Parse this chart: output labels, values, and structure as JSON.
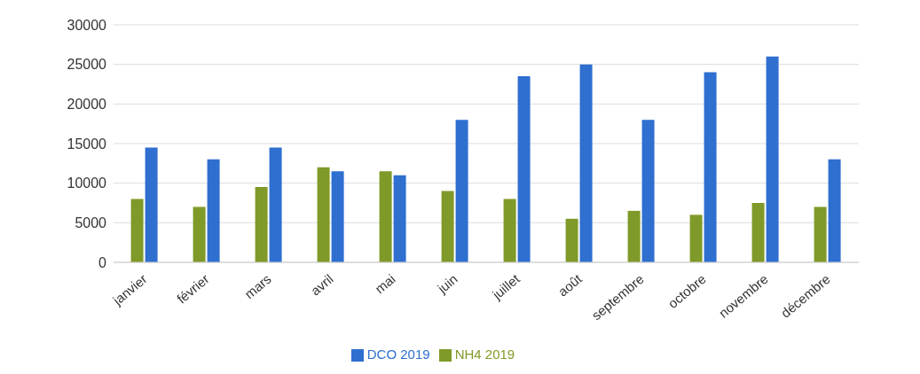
{
  "chart_data": {
    "type": "bar",
    "categories": [
      "janvier",
      "février",
      "mars",
      "avril",
      "mai",
      "juin",
      "juillet",
      "août",
      "septembre",
      "octobre",
      "novembre",
      "décembre"
    ],
    "series": [
      {
        "name": "NH4 2019",
        "color": "#7f9a28",
        "values": [
          8000,
          7000,
          9500,
          12000,
          11500,
          9000,
          8000,
          5500,
          6500,
          6000,
          7500,
          7000
        ]
      },
      {
        "name": "DCO 2019",
        "color": "#2e6fd0",
        "values": [
          14500,
          13000,
          14500,
          11500,
          11000,
          18000,
          23500,
          25000,
          18000,
          24000,
          26000,
          13000
        ]
      }
    ],
    "ylim": [
      0,
      30000
    ],
    "yticks": [
      0,
      5000,
      10000,
      15000,
      20000,
      25000,
      30000
    ],
    "grid": "y",
    "legend": "bottom"
  }
}
